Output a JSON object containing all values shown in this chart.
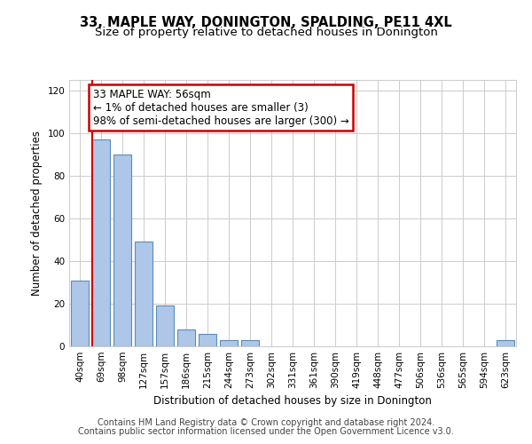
{
  "title": "33, MAPLE WAY, DONINGTON, SPALDING, PE11 4XL",
  "subtitle": "Size of property relative to detached houses in Donington",
  "xlabel": "Distribution of detached houses by size in Donington",
  "ylabel": "Number of detached properties",
  "categories": [
    "40sqm",
    "69sqm",
    "98sqm",
    "127sqm",
    "157sqm",
    "186sqm",
    "215sqm",
    "244sqm",
    "273sqm",
    "302sqm",
    "331sqm",
    "361sqm",
    "390sqm",
    "419sqm",
    "448sqm",
    "477sqm",
    "506sqm",
    "536sqm",
    "565sqm",
    "594sqm",
    "623sqm"
  ],
  "values": [
    31,
    97,
    90,
    49,
    19,
    8,
    6,
    3,
    3,
    0,
    0,
    0,
    0,
    0,
    0,
    0,
    0,
    0,
    0,
    0,
    3
  ],
  "bar_color": "#aec6e8",
  "bar_edge_color": "#5b8db8",
  "property_line_x": 0.575,
  "annotation_line1": "33 MAPLE WAY: 56sqm",
  "annotation_line2": "← 1% of detached houses are smaller (3)",
  "annotation_line3": "98% of semi-detached houses are larger (300) →",
  "annotation_box_color": "#ffffff",
  "annotation_box_edge_color": "#cc0000",
  "ylim": [
    0,
    125
  ],
  "yticks": [
    0,
    20,
    40,
    60,
    80,
    100,
    120
  ],
  "footer_line1": "Contains HM Land Registry data © Crown copyright and database right 2024.",
  "footer_line2": "Contains public sector information licensed under the Open Government Licence v3.0.",
  "background_color": "#ffffff",
  "grid_color": "#cccccc",
  "title_fontsize": 10.5,
  "subtitle_fontsize": 9.5,
  "axis_label_fontsize": 8.5,
  "tick_fontsize": 7.5,
  "annotation_fontsize": 8.5,
  "footer_fontsize": 7
}
